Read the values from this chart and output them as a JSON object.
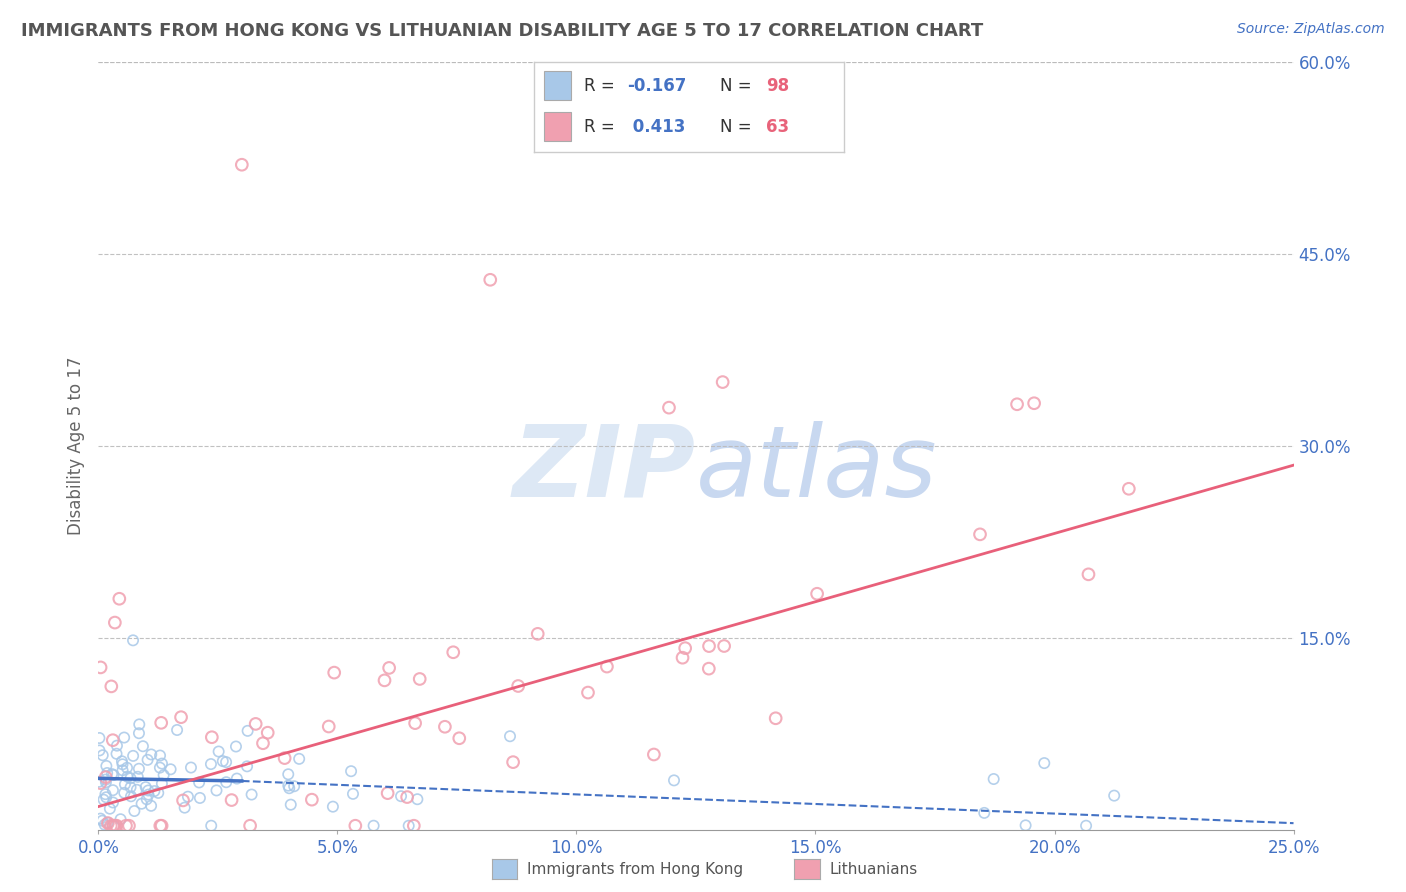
{
  "title": "IMMIGRANTS FROM HONG KONG VS LITHUANIAN DISABILITY AGE 5 TO 17 CORRELATION CHART",
  "source_text": "Source: ZipAtlas.com",
  "ylabel": "Disability Age 5 to 17",
  "xlim": [
    0.0,
    0.25
  ],
  "ylim": [
    0.0,
    0.6
  ],
  "xtick_labels": [
    "0.0%",
    "5.0%",
    "10.0%",
    "15.0%",
    "20.0%",
    "25.0%"
  ],
  "xtick_vals": [
    0.0,
    0.05,
    0.1,
    0.15,
    0.2,
    0.25
  ],
  "ytick_labels": [
    "15.0%",
    "30.0%",
    "45.0%",
    "60.0%"
  ],
  "ytick_vals": [
    0.15,
    0.3,
    0.45,
    0.6
  ],
  "series1_color": "#a8c8e8",
  "series2_color": "#f0a0b0",
  "line1_solid_color": "#4472c4",
  "line1_dash_color": "#4472c4",
  "line2_color": "#e8607a",
  "title_color": "#555555",
  "axis_label_color": "#4472c4",
  "watermark_color": "#dde8f5",
  "background_color": "#ffffff",
  "reg_line1_x": [
    0.0,
    0.03,
    0.25
  ],
  "reg_line1_y": [
    0.04,
    0.038,
    0.005
  ],
  "reg_line2_x": [
    0.0,
    0.25
  ],
  "reg_line2_y": [
    0.018,
    0.285
  ]
}
